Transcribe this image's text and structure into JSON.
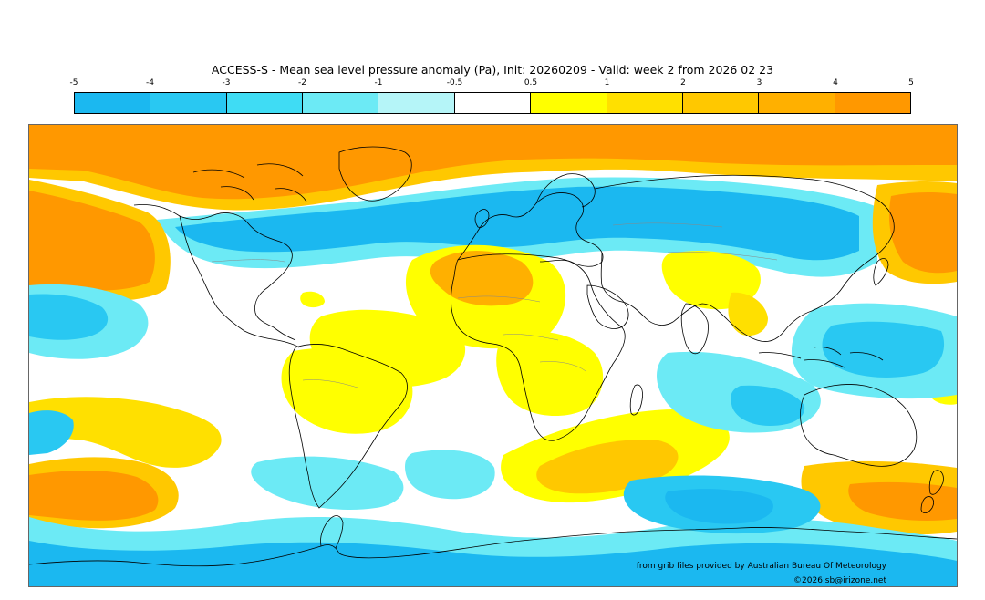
{
  "title": "ACCESS-S - Mean sea level pressure anomaly (Pa), Init: 20260209 - Valid: week 2 from 2026 02 23",
  "legend": {
    "ticks": [
      "-5",
      "-4",
      "-3",
      "-2",
      "-1",
      "-0.5",
      "0.5",
      "1",
      "2",
      "3",
      "4",
      "5"
    ],
    "colors": [
      "#1bb8f0",
      "#29c8f2",
      "#3fdcf4",
      "#6ceaf5",
      "#b5f5f8",
      "#ffffff",
      "#ffff00",
      "#ffe000",
      "#ffc800",
      "#ffb000",
      "#ff9800"
    ]
  },
  "credit": "from grib files provided by Australian Bureau Of Meteorology",
  "copyright": "©2026 sb@irizone.net"
}
